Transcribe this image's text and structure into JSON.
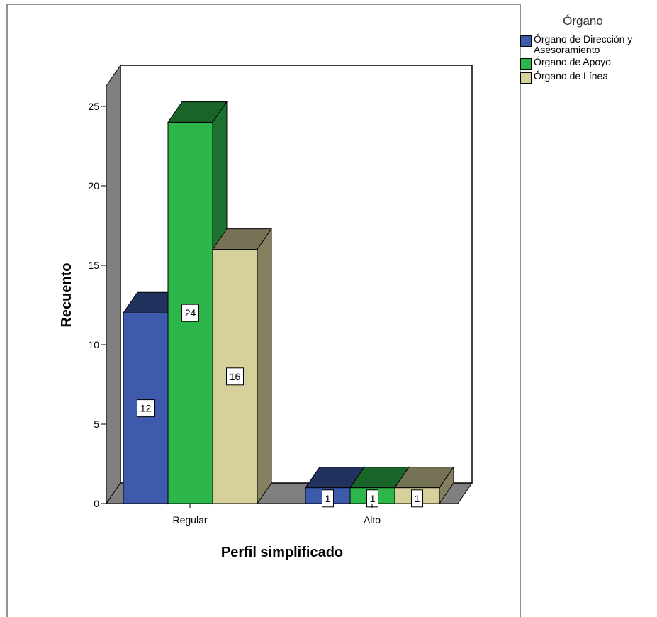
{
  "chart_data": {
    "type": "bar",
    "title": "",
    "xlabel": "Perfil simplificado",
    "ylabel": "Recuento",
    "categories": [
      "Regular",
      "Alto"
    ],
    "ylim": [
      0,
      25
    ],
    "yticks": [
      "0",
      "5",
      "10",
      "15",
      "20",
      "25"
    ],
    "legend_title": "Órgano",
    "legend_position": "top-right",
    "series": [
      {
        "name": "Órgano de Dirección y\nAsesoramiento",
        "color": "#3d5aac",
        "values": [
          12,
          1
        ],
        "labels": [
          "12",
          "1"
        ]
      },
      {
        "name": "Órgano de Apoyo",
        "color": "#2db74a",
        "values": [
          24,
          1
        ],
        "labels": [
          "24",
          "1"
        ]
      },
      {
        "name": "Órgano de Línea",
        "color": "#d6d09b",
        "values": [
          16,
          1
        ],
        "labels": [
          "16",
          "1"
        ]
      }
    ]
  }
}
